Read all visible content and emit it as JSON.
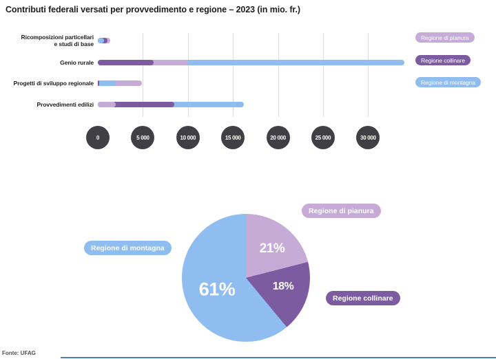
{
  "title": "Contributi federali versati per provvedimento e regione – 2023 (in mio. fr.)",
  "source": "Fonte: UFAG",
  "colors": {
    "pianura": "#c5abd6",
    "collinare": "#7d5ba0",
    "montagna": "#8fbdf0",
    "tick_circle": "#3f3f45",
    "gridline": "#dddddd",
    "bottom_rule": "#4a7cc7"
  },
  "legend": [
    {
      "id": "pianura",
      "label": "Regione di pianura"
    },
    {
      "id": "collinare",
      "label": "Regione collinare"
    },
    {
      "id": "montagna",
      "label": "Regione di montagna"
    }
  ],
  "chart_data": [
    {
      "type": "bar",
      "orientation": "horizontal",
      "layout": "overlapping-from-zero",
      "title": "Contributi federali versati per provvedimento e regione – 2023 (in mio. fr.)",
      "categories": [
        "Ricomposizioni particellari\ne studi di base",
        "Genio rurale",
        "Progetti di sviluppo regionale",
        "Provvedimenti edilizi"
      ],
      "series": [
        {
          "id": "pianura",
          "name": "Regione di pianura",
          "values": [
            1400,
            10000,
            4900,
            2000
          ]
        },
        {
          "id": "collinare",
          "name": "Regione collinare",
          "values": [
            1100,
            6200,
            100,
            8500
          ]
        },
        {
          "id": "montagna",
          "name": "Regione di montagna",
          "values": [
            700,
            34000,
            2000,
            16200
          ]
        }
      ],
      "x_ticks": [
        "0",
        "5 000",
        "10 000",
        "15 000",
        "20 000",
        "25 000",
        "30 000"
      ],
      "x_tick_values": [
        0,
        5000,
        10000,
        15000,
        20000,
        25000,
        30000
      ],
      "xlim": [
        0,
        30000
      ],
      "grid": true,
      "legend_position": "right"
    },
    {
      "type": "pie",
      "start_angle_deg": 0,
      "direction": "clockwise",
      "slices": [
        {
          "id": "pianura",
          "label": "Regione di pianura",
          "value": 21,
          "pct_label": "21%"
        },
        {
          "id": "collinare",
          "label": "Regione collinare",
          "value": 18,
          "pct_label": "18%"
        },
        {
          "id": "montagna",
          "label": "Regione di montagna",
          "value": 61,
          "pct_label": "61%"
        }
      ]
    }
  ]
}
